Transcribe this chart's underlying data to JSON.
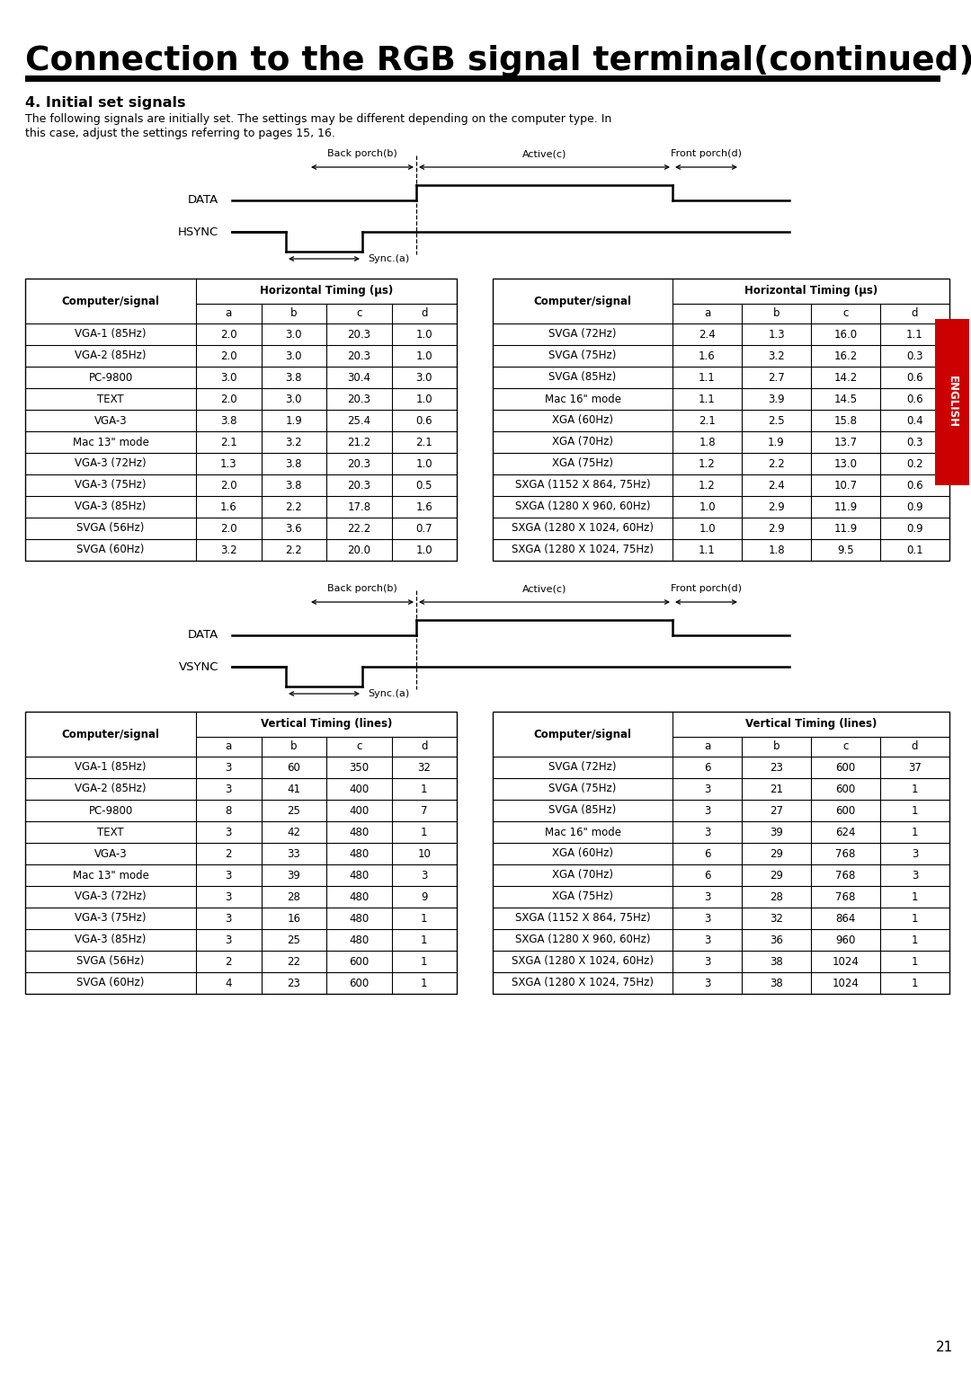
{
  "title": "Connection to the RGB signal terminal(continued)",
  "section_title": "4. Initial set signals",
  "section_text1": "The following signals are initially set. The settings may be different depending on the computer type. In",
  "section_text2": "this case, adjust the settings referring to pages 15, 16.",
  "english_tab": "ENGLISH",
  "page_number": "21",
  "h_table_left": {
    "header_col": "Computer/signal",
    "header_span": "Horizontal Timing (µs)",
    "subheaders": [
      "a",
      "b",
      "c",
      "d"
    ],
    "rows": [
      [
        "VGA-1 (85Hz)",
        "2.0",
        "3.0",
        "20.3",
        "1.0"
      ],
      [
        "VGA-2 (85Hz)",
        "2.0",
        "3.0",
        "20.3",
        "1.0"
      ],
      [
        "PC-9800",
        "3.0",
        "3.8",
        "30.4",
        "3.0"
      ],
      [
        "TEXT",
        "2.0",
        "3.0",
        "20.3",
        "1.0"
      ],
      [
        "VGA-3",
        "3.8",
        "1.9",
        "25.4",
        "0.6"
      ],
      [
        "Mac 13\" mode",
        "2.1",
        "3.2",
        "21.2",
        "2.1"
      ],
      [
        "VGA-3 (72Hz)",
        "1.3",
        "3.8",
        "20.3",
        "1.0"
      ],
      [
        "VGA-3 (75Hz)",
        "2.0",
        "3.8",
        "20.3",
        "0.5"
      ],
      [
        "VGA-3 (85Hz)",
        "1.6",
        "2.2",
        "17.8",
        "1.6"
      ],
      [
        "SVGA (56Hz)",
        "2.0",
        "3.6",
        "22.2",
        "0.7"
      ],
      [
        "SVGA (60Hz)",
        "3.2",
        "2.2",
        "20.0",
        "1.0"
      ]
    ]
  },
  "h_table_right": {
    "header_col": "Computer/signal",
    "header_span": "Horizontal Timing (µs)",
    "subheaders": [
      "a",
      "b",
      "c",
      "d"
    ],
    "rows": [
      [
        "SVGA (72Hz)",
        "2.4",
        "1.3",
        "16.0",
        "1.1"
      ],
      [
        "SVGA (75Hz)",
        "1.6",
        "3.2",
        "16.2",
        "0.3"
      ],
      [
        "SVGA (85Hz)",
        "1.1",
        "2.7",
        "14.2",
        "0.6"
      ],
      [
        "Mac 16\" mode",
        "1.1",
        "3.9",
        "14.5",
        "0.6"
      ],
      [
        "XGA (60Hz)",
        "2.1",
        "2.5",
        "15.8",
        "0.4"
      ],
      [
        "XGA (70Hz)",
        "1.8",
        "1.9",
        "13.7",
        "0.3"
      ],
      [
        "XGA (75Hz)",
        "1.2",
        "2.2",
        "13.0",
        "0.2"
      ],
      [
        "SXGA (1152 X 864, 75Hz)",
        "1.2",
        "2.4",
        "10.7",
        "0.6"
      ],
      [
        "SXGA (1280 X 960, 60Hz)",
        "1.0",
        "2.9",
        "11.9",
        "0.9"
      ],
      [
        "SXGA (1280 X 1024, 60Hz)",
        "1.0",
        "2.9",
        "11.9",
        "0.9"
      ],
      [
        "SXGA (1280 X 1024, 75Hz)",
        "1.1",
        "1.8",
        "9.5",
        "0.1"
      ]
    ]
  },
  "v_table_left": {
    "header_col": "Computer/signal",
    "header_span": "Vertical Timing (lines)",
    "subheaders": [
      "a",
      "b",
      "c",
      "d"
    ],
    "rows": [
      [
        "VGA-1 (85Hz)",
        "3",
        "60",
        "350",
        "32"
      ],
      [
        "VGA-2 (85Hz)",
        "3",
        "41",
        "400",
        "1"
      ],
      [
        "PC-9800",
        "8",
        "25",
        "400",
        "7"
      ],
      [
        "TEXT",
        "3",
        "42",
        "480",
        "1"
      ],
      [
        "VGA-3",
        "2",
        "33",
        "480",
        "10"
      ],
      [
        "Mac 13\" mode",
        "3",
        "39",
        "480",
        "3"
      ],
      [
        "VGA-3 (72Hz)",
        "3",
        "28",
        "480",
        "9"
      ],
      [
        "VGA-3 (75Hz)",
        "3",
        "16",
        "480",
        "1"
      ],
      [
        "VGA-3 (85Hz)",
        "3",
        "25",
        "480",
        "1"
      ],
      [
        "SVGA (56Hz)",
        "2",
        "22",
        "600",
        "1"
      ],
      [
        "SVGA (60Hz)",
        "4",
        "23",
        "600",
        "1"
      ]
    ]
  },
  "v_table_right": {
    "header_col": "Computer/signal",
    "header_span": "Vertical Timing (lines)",
    "subheaders": [
      "a",
      "b",
      "c",
      "d"
    ],
    "rows": [
      [
        "SVGA (72Hz)",
        "6",
        "23",
        "600",
        "37"
      ],
      [
        "SVGA (75Hz)",
        "3",
        "21",
        "600",
        "1"
      ],
      [
        "SVGA (85Hz)",
        "3",
        "27",
        "600",
        "1"
      ],
      [
        "Mac 16\" mode",
        "3",
        "39",
        "624",
        "1"
      ],
      [
        "XGA (60Hz)",
        "6",
        "29",
        "768",
        "3"
      ],
      [
        "XGA (70Hz)",
        "6",
        "29",
        "768",
        "3"
      ],
      [
        "XGA (75Hz)",
        "3",
        "28",
        "768",
        "1"
      ],
      [
        "SXGA (1152 X 864, 75Hz)",
        "3",
        "32",
        "864",
        "1"
      ],
      [
        "SXGA (1280 X 960, 60Hz)",
        "3",
        "36",
        "960",
        "1"
      ],
      [
        "SXGA (1280 X 1024, 60Hz)",
        "3",
        "38",
        "1024",
        "1"
      ],
      [
        "SXGA (1280 X 1024, 75Hz)",
        "3",
        "38",
        "1024",
        "1"
      ]
    ]
  }
}
